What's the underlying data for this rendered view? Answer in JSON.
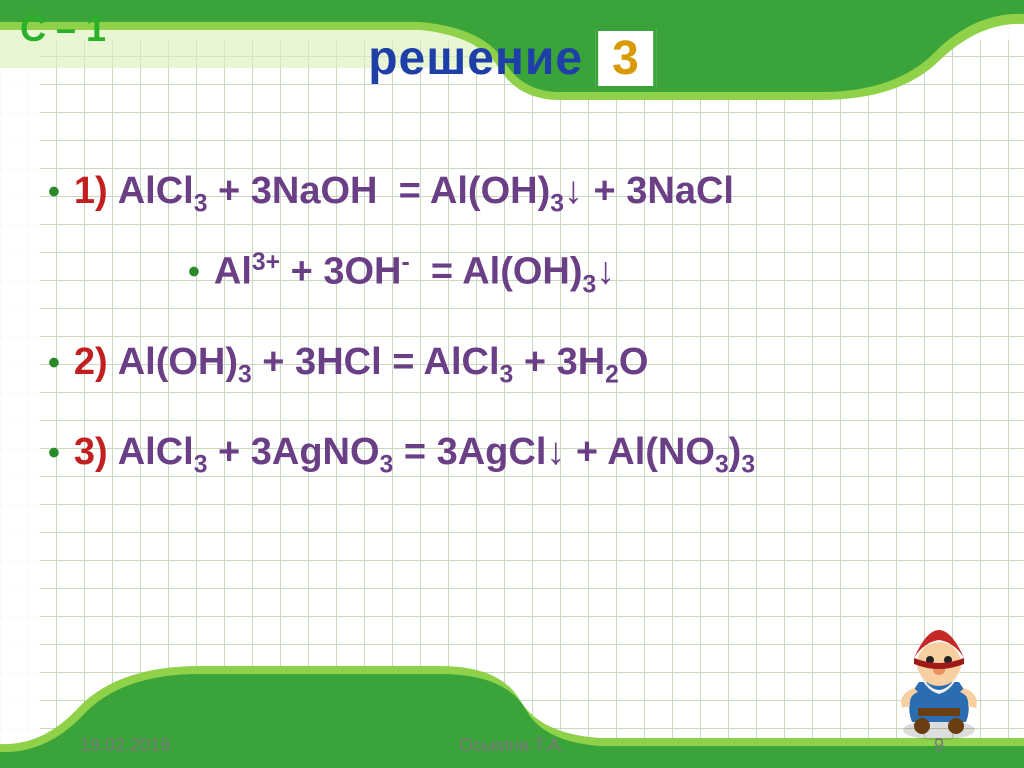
{
  "colors": {
    "frame_outer": "#3aa33a",
    "frame_inner": "#8fd24a",
    "frame_light": "#d9f0b8",
    "header_label": "#2bb02b",
    "title_text": "#1f3fa8",
    "title_badge_text": "#d99a00",
    "title_badge_border": "#3aa33a",
    "bullet": "#2a8a2a",
    "eq_number": "#c22020",
    "eq_text": "#6a3f86",
    "footer_text": "#7a7a7a",
    "grid_line": "#c9d9c0",
    "background": "#ffffff"
  },
  "header": {
    "label": "С – 1"
  },
  "title": {
    "text": "решение",
    "badge": "3"
  },
  "equations": [
    {
      "num": "1)",
      "html": "AlCl<sub>3</sub> + 3NaOH  = Al(OH)<sub>3</sub>↓ + 3NaCl",
      "ionic": false
    },
    {
      "num": "",
      "html": "Al<sup>3+</sup> + 3OH<sup>-</sup>  = Al(OH)<sub>3</sub>↓",
      "ionic": true
    },
    {
      "num": "2)",
      "html": "Al(OH)<sub>3</sub> + 3HCl = AlCl<sub>3</sub> + 3H<sub>2</sub>O",
      "ionic": false
    },
    {
      "num": "3)",
      "html": "AlCl<sub>3</sub> + 3AgNO<sub>3</sub> = 3AgCl↓ + Al(NO<sub>3</sub>)<sub>3</sub>",
      "ionic": false
    }
  ],
  "footer": {
    "date": "19.02.2019",
    "author": "Оськина Т.А.",
    "page": "9"
  },
  "fonts": {
    "header_label_size": 36,
    "title_size": 48,
    "badge_size": 48,
    "equation_size": 38,
    "footer_size": 18
  }
}
